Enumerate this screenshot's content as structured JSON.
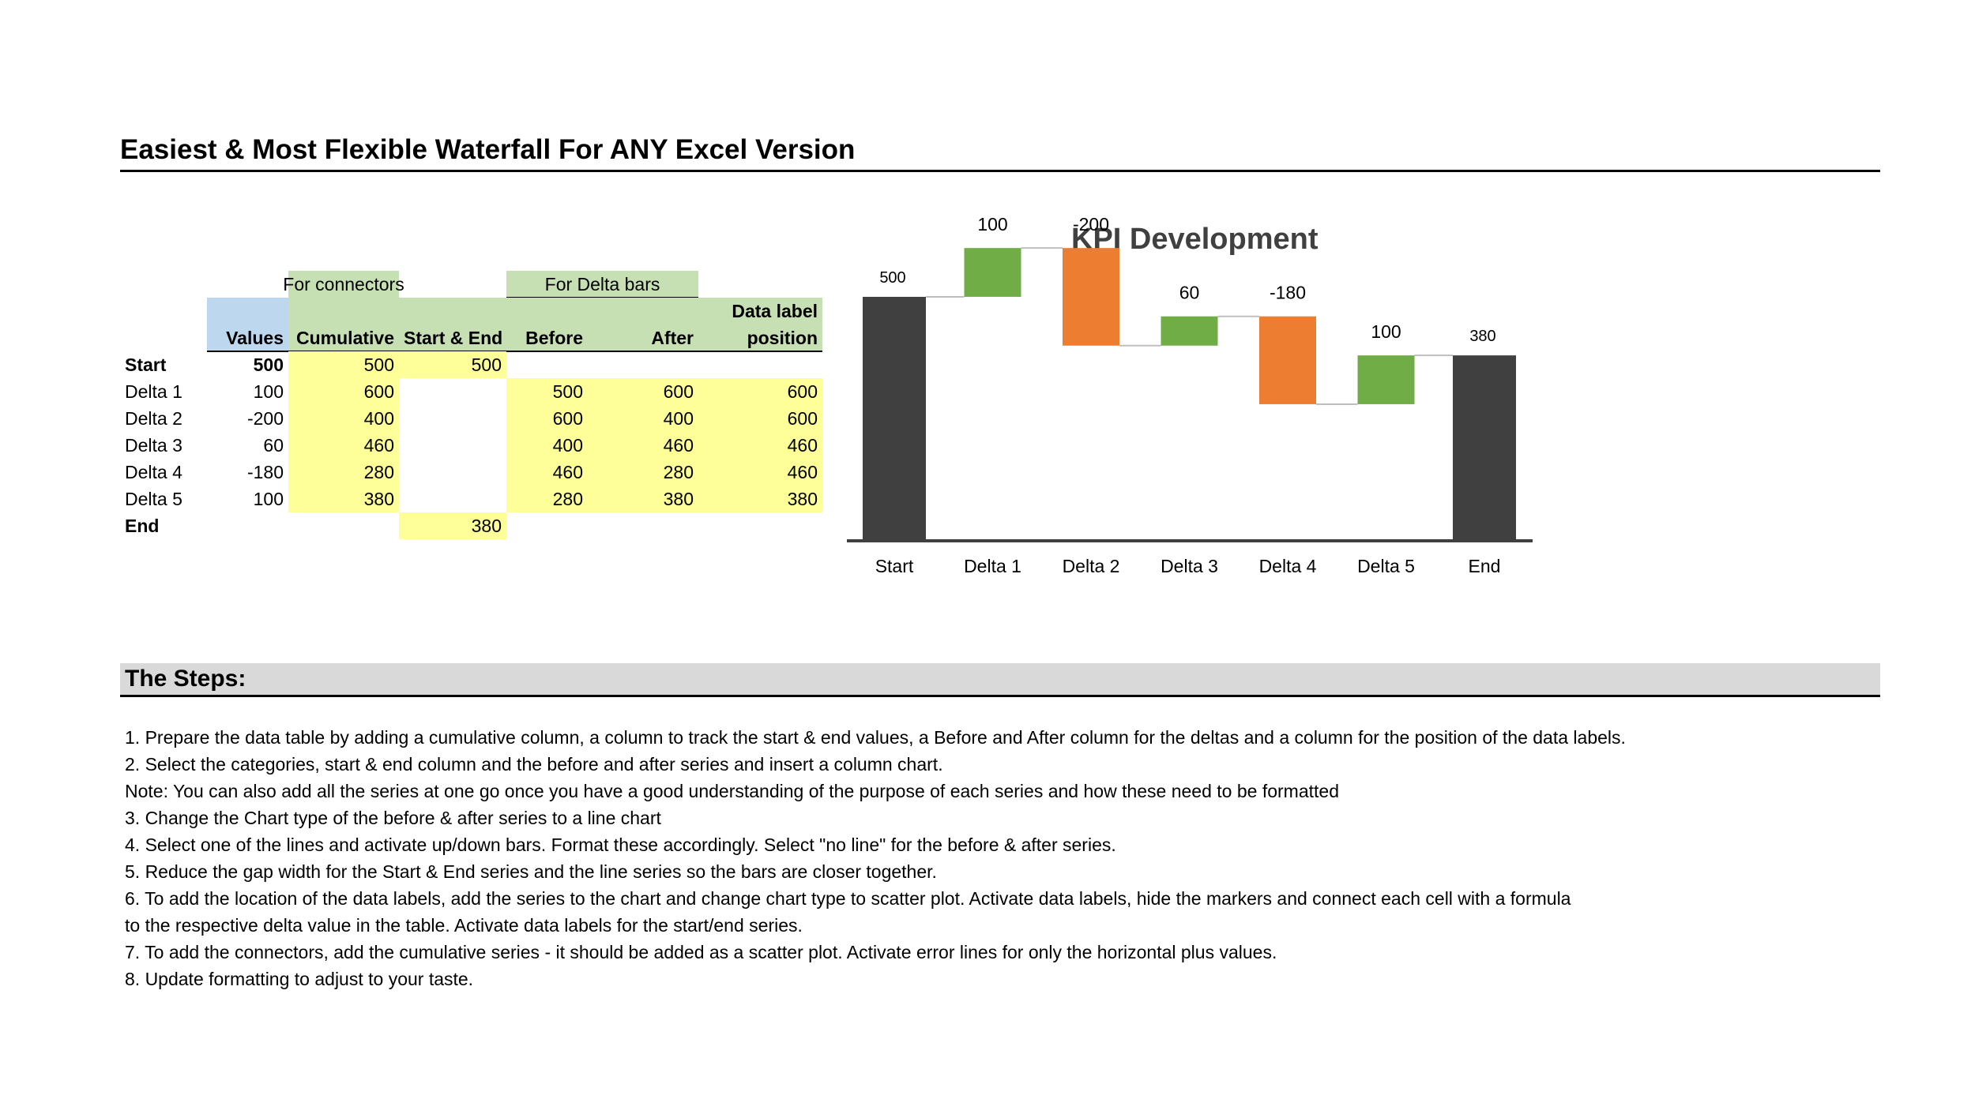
{
  "page": {
    "title": "Easiest & Most Flexible Waterfall For ANY Excel Version"
  },
  "table": {
    "group_headers": {
      "connectors": "For connectors",
      "delta_bars": "For Delta bars"
    },
    "columns": {
      "values": "Values",
      "cumulative": "Cumulative",
      "start_end": "Start & End",
      "before": "Before",
      "after": "After",
      "label_pos_line1": "Data label",
      "label_pos_line2": "position"
    },
    "rows": [
      {
        "label": "Start",
        "values": "500",
        "cumulative": "500",
        "start_end": "500",
        "before": "",
        "after": "",
        "label_pos": ""
      },
      {
        "label": "Delta 1",
        "values": "100",
        "cumulative": "600",
        "start_end": "",
        "before": "500",
        "after": "600",
        "label_pos": "600"
      },
      {
        "label": "Delta 2",
        "values": "-200",
        "cumulative": "400",
        "start_end": "",
        "before": "600",
        "after": "400",
        "label_pos": "600"
      },
      {
        "label": "Delta 3",
        "values": "60",
        "cumulative": "460",
        "start_end": "",
        "before": "400",
        "after": "460",
        "label_pos": "460"
      },
      {
        "label": "Delta 4",
        "values": "-180",
        "cumulative": "280",
        "start_end": "",
        "before": "460",
        "after": "280",
        "label_pos": "460"
      },
      {
        "label": "Delta 5",
        "values": "100",
        "cumulative": "380",
        "start_end": "",
        "before": "280",
        "after": "380",
        "label_pos": "380"
      },
      {
        "label": "End",
        "values": "",
        "cumulative": "",
        "start_end": "380",
        "before": "",
        "after": "",
        "label_pos": ""
      }
    ]
  },
  "chart_data": {
    "type": "bar",
    "subtype": "waterfall",
    "title": "KPI Development",
    "categories": [
      "Start",
      "Delta 1",
      "Delta 2",
      "Delta 3",
      "Delta 4",
      "Delta 5",
      "End"
    ],
    "values": [
      500,
      100,
      -200,
      60,
      -180,
      100,
      380
    ],
    "cumulative": [
      500,
      600,
      400,
      460,
      280,
      380,
      380
    ],
    "data_labels": [
      "500",
      "100",
      "-200",
      "60",
      "-180",
      "100",
      "380"
    ],
    "ylim": [
      0,
      720
    ],
    "grid": false,
    "legend": "none",
    "colors": {
      "total": "#404040",
      "increase": "#70ad47",
      "decrease": "#ed7d31",
      "connector": "#bfbfbf",
      "axis": "#404040",
      "label_text": "#000000"
    }
  },
  "steps": {
    "title": "The Steps:",
    "lines": [
      "1. Prepare the data table by adding a cumulative column, a column to track the start & end values, a Before and After column for the deltas and a column for the position of the data labels.",
      "2. Select the categories, start & end column and the before and after series and insert a column chart.",
      "Note: You can also add all the series at one go once you have a good understanding of the purpose of each series and how these need to be formatted",
      "3. Change the Chart type of the before & after series to a line chart",
      "4. Select one of the lines and activate up/down bars. Format these accordingly. Select \"no line\" for the before & after series.",
      "5. Reduce the gap width for the Start & End series and the line series so the bars are closer together.",
      "6. To add the location of the data labels, add the series to the chart and change chart type to scatter plot. Activate data labels, hide the markers and connect each cell with a formula",
      "to the respective delta value in the table. Activate data labels for the start/end series.",
      "7. To add the connectors, add the cumulative series - it should be added as a scatter plot. Activate error lines for only the horizontal plus values.",
      "8. Update formatting to adjust to your taste."
    ]
  }
}
